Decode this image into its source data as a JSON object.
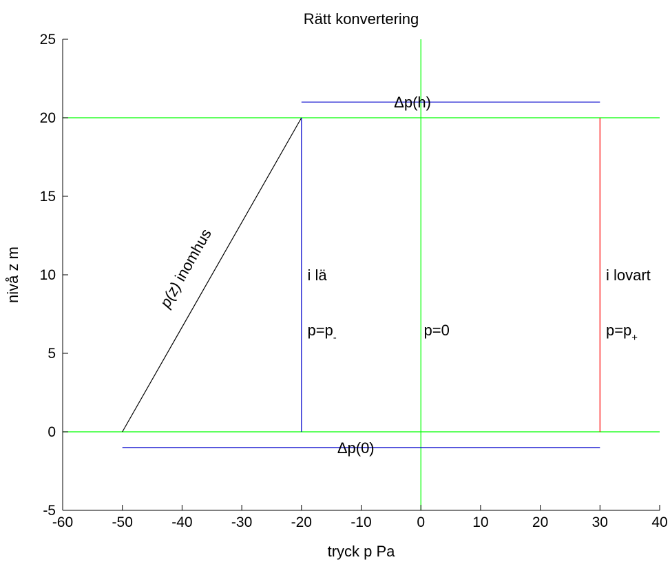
{
  "chart_data": {
    "type": "line",
    "title": "Rätt konvertering",
    "xlabel": "tryck p  Pa",
    "ylabel": "nivå z  m",
    "xlim": [
      -60,
      40
    ],
    "ylim": [
      -5,
      25
    ],
    "xticks": [
      -60,
      -50,
      -40,
      -30,
      -20,
      -10,
      0,
      10,
      20,
      30,
      40
    ],
    "yticks": [
      -5,
      0,
      5,
      10,
      15,
      20,
      25
    ],
    "grid": false,
    "series": [
      {
        "color": "#00ff00",
        "x": [
          -60,
          40
        ],
        "y": [
          0,
          0
        ]
      },
      {
        "color": "#00ff00",
        "x": [
          -60,
          40
        ],
        "y": [
          20,
          20
        ]
      },
      {
        "color": "#00ff00",
        "x": [
          0,
          0
        ],
        "y": [
          -5,
          25
        ]
      },
      {
        "color": "#000000",
        "x": [
          -50,
          -20
        ],
        "y": [
          0,
          20
        ]
      },
      {
        "color": "#0000cc",
        "x": [
          -20,
          -20
        ],
        "y": [
          0,
          20
        ]
      },
      {
        "color": "#ff0000",
        "x": [
          30,
          30
        ],
        "y": [
          0,
          20
        ]
      },
      {
        "color": "#0000cc",
        "x": [
          -20,
          30
        ],
        "y": [
          21,
          21
        ]
      },
      {
        "color": "#0000cc",
        "x": [
          -50,
          30
        ],
        "y": [
          -1,
          -1
        ]
      }
    ],
    "annotations": [
      {
        "text": "Δp(h)",
        "x": -4.5,
        "y": 21
      },
      {
        "text": "Δp(0)",
        "x": -14,
        "y": -1
      },
      {
        "text": "i lä",
        "x": -19,
        "y": 10
      },
      {
        "text": "p=p",
        "sub": "-",
        "x": -19,
        "y": 6.5
      },
      {
        "text": "p=0",
        "x": 0.5,
        "y": 6.5
      },
      {
        "text": "i lovart",
        "x": 31,
        "y": 10
      },
      {
        "text": "p=p",
        "sub": "+",
        "x": 31,
        "y": 6.5
      },
      {
        "text_italic": "p(z)",
        "text": " inomhus",
        "x": -38,
        "y": 7.5,
        "rotated": true
      }
    ]
  }
}
